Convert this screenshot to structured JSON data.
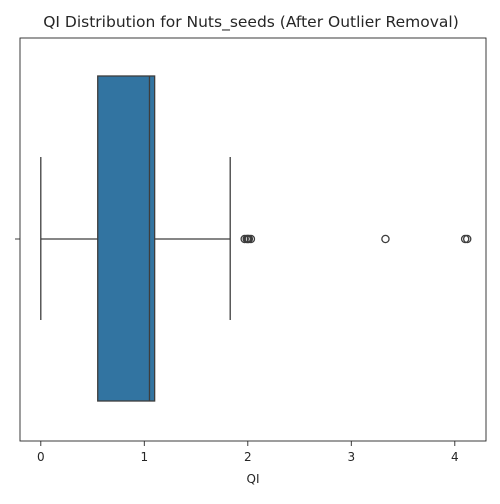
{
  "chart_data": {
    "type": "box",
    "orientation": "horizontal",
    "title": "QI Distribution for Nuts_seeds (After Outlier Removal)",
    "xlabel": "QI",
    "ylabel": "",
    "xlim": [
      -0.2,
      4.3
    ],
    "xticks": [
      0,
      1,
      2,
      3,
      4
    ],
    "xtick_labels": [
      "0",
      "1",
      "2",
      "3",
      "4"
    ],
    "grid": false,
    "legend": "none",
    "box": {
      "whisker_low": 0.0,
      "q1": 0.55,
      "median": 1.05,
      "q3": 1.1,
      "whisker_high": 1.83,
      "outliers": [
        1.97,
        1.99,
        2.0,
        2.01,
        2.03,
        3.33,
        4.1,
        4.12
      ],
      "color": "#3274a1",
      "edge_color": "#3d3d3d"
    }
  }
}
